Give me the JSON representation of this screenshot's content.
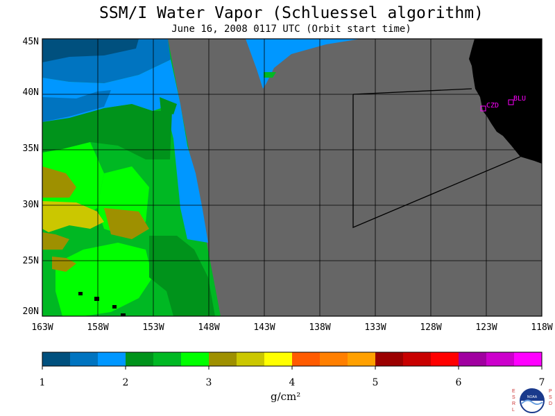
{
  "title": "SSM/I Water Vapor (Schluessel algorithm)",
  "subtitle": "June 16, 2008  0117 UTC  (Orbit start time)",
  "map": {
    "lat_labels": [
      "45N",
      "40N",
      "35N",
      "30N",
      "25N",
      "20N"
    ],
    "lon_labels": [
      "163W",
      "158W",
      "153W",
      "148W",
      "143W",
      "138W",
      "133W",
      "128W",
      "123W",
      "118W"
    ],
    "stations": [
      {
        "code": "CZD",
        "color": "#ff00ff"
      },
      {
        "code": "BLU",
        "color": "#ff00ff"
      }
    ],
    "no_data_color": "#666666",
    "land_color": "#000000"
  },
  "colorbar": {
    "ticks": [
      "1",
      "2",
      "3",
      "4",
      "5",
      "6",
      "7"
    ],
    "unit": "g/cm²",
    "colors": [
      "#00507e",
      "#0074c0",
      "#0097ff",
      "#00931b",
      "#00b823",
      "#00ff00",
      "#9e9000",
      "#cbc700",
      "#ffff00",
      "#ff5b00",
      "#ff7f00",
      "#ffa000",
      "#9b0000",
      "#c80000",
      "#ff0000",
      "#a000a0",
      "#cc00cc",
      "#ff00ff"
    ]
  },
  "logo": {
    "left_text": "ESRL",
    "right_text": "PSD",
    "center_text": "NOAA"
  }
}
